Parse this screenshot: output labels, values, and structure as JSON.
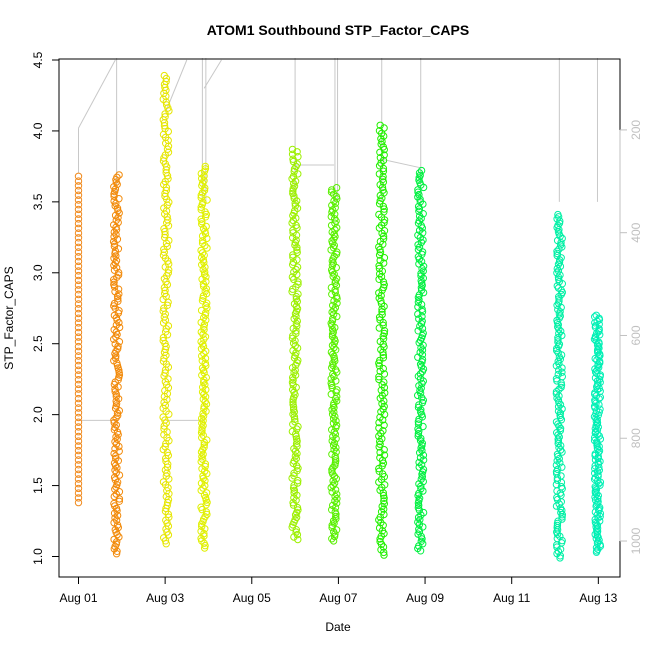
{
  "chart_data": {
    "type": "scatter",
    "title": "ATOM1 Southbound STP_Factor_CAPS",
    "xlabel": "Date",
    "ylabel": "STP_Factor_CAPS",
    "x_ticks": [
      {
        "day": 1,
        "label": "Aug 01"
      },
      {
        "day": 3,
        "label": "Aug 03"
      },
      {
        "day": 5,
        "label": "Aug 05"
      },
      {
        "day": 7,
        "label": "Aug 07"
      },
      {
        "day": 9,
        "label": "Aug 09"
      },
      {
        "day": 11,
        "label": "Aug 11"
      },
      {
        "day": 13,
        "label": "Aug 13"
      }
    ],
    "xlim": [
      0.55,
      13.5
    ],
    "ylim": [
      0.9,
      4.5
    ],
    "y_ticks": [
      1.0,
      1.5,
      2.0,
      2.5,
      3.0,
      3.5,
      4.0,
      4.5
    ],
    "y2_ticks": [
      200,
      400,
      600,
      800,
      1000
    ],
    "y2lim": [
      62,
      1070
    ],
    "grid": false,
    "series": [
      {
        "day": 1.0,
        "min": 1.38,
        "max": 3.68,
        "color": "#f08a1e",
        "dense": false
      },
      {
        "day": 1.88,
        "min": 1.02,
        "max": 3.69,
        "color": "#f28a0a",
        "dense": true
      },
      {
        "day": 3.02,
        "min": 1.09,
        "max": 4.39,
        "color": "#e6e600",
        "dense": true
      },
      {
        "day": 3.9,
        "min": 1.06,
        "max": 3.75,
        "color": "#e0f000",
        "dense": true
      },
      {
        "day": 6.0,
        "min": 1.12,
        "max": 3.87,
        "color": "#9cf000",
        "dense": true
      },
      {
        "day": 6.9,
        "min": 1.11,
        "max": 3.6,
        "color": "#59f000",
        "dense": true
      },
      {
        "day": 8.0,
        "min": 1.01,
        "max": 4.04,
        "color": "#22f000",
        "dense": true
      },
      {
        "day": 8.9,
        "min": 1.04,
        "max": 3.72,
        "color": "#00f040",
        "dense": true
      },
      {
        "day": 12.1,
        "min": 0.99,
        "max": 3.41,
        "color": "#00f0a5",
        "dense": true
      },
      {
        "day": 12.98,
        "min": 1.03,
        "max": 2.7,
        "color": "#00f0b5",
        "dense": true
      }
    ],
    "line_color": "#c8c8c8"
  }
}
